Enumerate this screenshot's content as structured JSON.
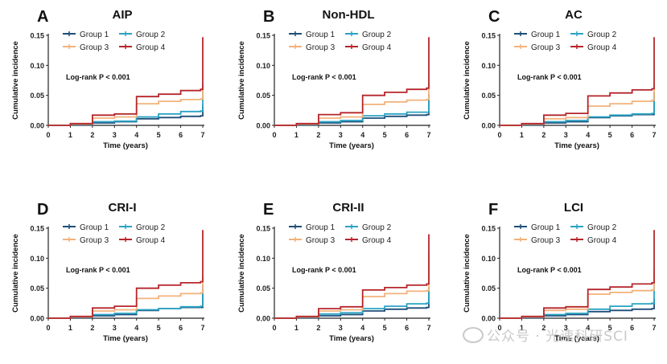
{
  "watermark": {
    "text": "公众号 · 光速科研SCI",
    "icon": "wechat-icon"
  },
  "chart_data": [
    {
      "type": "line",
      "step": true,
      "panel_letter": "A",
      "title": "AIP",
      "xlabel": "Time (years)",
      "ylabel": "Cumulative incidence",
      "xlim": [
        0,
        7
      ],
      "ylim": [
        0,
        0.15
      ],
      "xticks": [
        "0",
        "1",
        "2",
        "3",
        "4",
        "5",
        "6",
        "7"
      ],
      "yticks": [
        "0.00",
        "0.05",
        "0.10",
        "0.15"
      ],
      "annotation": "Log-rank P < 0.001",
      "legend": [
        "Group 1",
        "Group 2",
        "Group 3",
        "Group 4"
      ],
      "series": [
        {
          "name": "Group 1",
          "color": "#1f4e79",
          "x": [
            0,
            1,
            2,
            3,
            4,
            5,
            6,
            6.9,
            7
          ],
          "y": [
            0,
            0.001,
            0.004,
            0.006,
            0.011,
            0.013,
            0.015,
            0.016,
            0.033
          ]
        },
        {
          "name": "Group 2",
          "color": "#2aa3c4",
          "x": [
            0,
            1,
            2,
            3,
            4,
            5,
            6,
            6.9,
            7
          ],
          "y": [
            0,
            0.002,
            0.006,
            0.007,
            0.014,
            0.019,
            0.023,
            0.024,
            0.068
          ]
        },
        {
          "name": "Group 3",
          "color": "#f2b27b",
          "x": [
            0,
            1,
            2,
            3,
            4,
            5,
            6,
            6.9,
            7
          ],
          "y": [
            0,
            0.002,
            0.012,
            0.014,
            0.036,
            0.04,
            0.043,
            0.044,
            0.062
          ]
        },
        {
          "name": "Group 4",
          "color": "#b5262b",
          "x": [
            0,
            1,
            2,
            3,
            4,
            5,
            6,
            6.9,
            7
          ],
          "y": [
            0,
            0.003,
            0.017,
            0.019,
            0.048,
            0.052,
            0.058,
            0.06,
            0.147
          ]
        }
      ]
    },
    {
      "type": "line",
      "step": true,
      "panel_letter": "B",
      "title": "Non-HDL",
      "xlabel": "Time (years)",
      "ylabel": "Cumulative incidence",
      "xlim": [
        0,
        7
      ],
      "ylim": [
        0,
        0.15
      ],
      "xticks": [
        "0",
        "1",
        "2",
        "3",
        "4",
        "5",
        "6",
        "7"
      ],
      "yticks": [
        "0.00",
        "0.05",
        "0.10",
        "0.15"
      ],
      "annotation": "Log-rank P < 0.001",
      "legend": [
        "Group 1",
        "Group 2",
        "Group 3",
        "Group 4"
      ],
      "series": [
        {
          "name": "Group 1",
          "color": "#1f4e79",
          "x": [
            0,
            1,
            2,
            3,
            4,
            5,
            6,
            6.9,
            7
          ],
          "y": [
            0,
            0.001,
            0.004,
            0.006,
            0.012,
            0.015,
            0.017,
            0.018,
            0.052
          ]
        },
        {
          "name": "Group 2",
          "color": "#2aa3c4",
          "x": [
            0,
            1,
            2,
            3,
            4,
            5,
            6,
            6.9,
            7
          ],
          "y": [
            0,
            0.002,
            0.006,
            0.008,
            0.016,
            0.019,
            0.022,
            0.022,
            0.05
          ]
        },
        {
          "name": "Group 3",
          "color": "#f2b27b",
          "x": [
            0,
            1,
            2,
            3,
            4,
            5,
            6,
            6.9,
            7
          ],
          "y": [
            0,
            0.002,
            0.012,
            0.014,
            0.035,
            0.039,
            0.042,
            0.043,
            0.07
          ]
        },
        {
          "name": "Group 4",
          "color": "#b5262b",
          "x": [
            0,
            1,
            2,
            3,
            4,
            5,
            6,
            6.9,
            7
          ],
          "y": [
            0,
            0.003,
            0.018,
            0.021,
            0.05,
            0.055,
            0.06,
            0.062,
            0.147
          ]
        }
      ]
    },
    {
      "type": "line",
      "step": true,
      "panel_letter": "C",
      "title": "AC",
      "xlabel": "Time (years)",
      "ylabel": "Cumulative incidence",
      "xlim": [
        0,
        7
      ],
      "ylim": [
        0,
        0.15
      ],
      "xticks": [
        "0",
        "1",
        "2",
        "3",
        "4",
        "5",
        "6",
        "7"
      ],
      "yticks": [
        "0.00",
        "0.05",
        "0.10",
        "0.15"
      ],
      "annotation": "Log-rank P < 0.001",
      "legend": [
        "Group 1",
        "Group 2",
        "Group 3",
        "Group 4"
      ],
      "series": [
        {
          "name": "Group 1",
          "color": "#1f4e79",
          "x": [
            0,
            1,
            2,
            3,
            4,
            5,
            6,
            6.9,
            7
          ],
          "y": [
            0,
            0.001,
            0.004,
            0.006,
            0.013,
            0.016,
            0.018,
            0.018,
            0.055
          ]
        },
        {
          "name": "Group 2",
          "color": "#2aa3c4",
          "x": [
            0,
            1,
            2,
            3,
            4,
            5,
            6,
            6.9,
            7
          ],
          "y": [
            0,
            0.002,
            0.006,
            0.008,
            0.014,
            0.017,
            0.019,
            0.02,
            0.048
          ]
        },
        {
          "name": "Group 3",
          "color": "#f2b27b",
          "x": [
            0,
            1,
            2,
            3,
            4,
            5,
            6,
            6.9,
            7
          ],
          "y": [
            0,
            0.002,
            0.011,
            0.013,
            0.032,
            0.036,
            0.04,
            0.042,
            0.07
          ]
        },
        {
          "name": "Group 4",
          "color": "#b5262b",
          "x": [
            0,
            1,
            2,
            3,
            4,
            5,
            6,
            6.9,
            7
          ],
          "y": [
            0,
            0.003,
            0.017,
            0.02,
            0.049,
            0.054,
            0.059,
            0.061,
            0.147
          ]
        }
      ]
    },
    {
      "type": "line",
      "step": true,
      "panel_letter": "D",
      "title": "CRI-I",
      "xlabel": "Time (years)",
      "ylabel": "Cumulative incidence",
      "xlim": [
        0,
        7
      ],
      "ylim": [
        0,
        0.15
      ],
      "xticks": [
        "0",
        "1",
        "2",
        "3",
        "4",
        "5",
        "6",
        "7"
      ],
      "yticks": [
        "0.00",
        "0.05",
        "0.10",
        "0.15"
      ],
      "annotation": "Log-rank P < 0.001",
      "legend": [
        "Group 1",
        "Group 2",
        "Group 3",
        "Group 4"
      ],
      "series": [
        {
          "name": "Group 1",
          "color": "#1f4e79",
          "x": [
            0,
            1,
            2,
            3,
            4,
            5,
            6,
            6.9,
            7
          ],
          "y": [
            0,
            0.001,
            0.004,
            0.006,
            0.013,
            0.016,
            0.018,
            0.018,
            0.055
          ]
        },
        {
          "name": "Group 2",
          "color": "#2aa3c4",
          "x": [
            0,
            1,
            2,
            3,
            4,
            5,
            6,
            6.9,
            7
          ],
          "y": [
            0,
            0.002,
            0.006,
            0.008,
            0.014,
            0.016,
            0.019,
            0.02,
            0.048
          ]
        },
        {
          "name": "Group 3",
          "color": "#f2b27b",
          "x": [
            0,
            1,
            2,
            3,
            4,
            5,
            6,
            6.9,
            7
          ],
          "y": [
            0,
            0.002,
            0.012,
            0.014,
            0.033,
            0.037,
            0.041,
            0.042,
            0.07
          ]
        },
        {
          "name": "Group 4",
          "color": "#b5262b",
          "x": [
            0,
            1,
            2,
            3,
            4,
            5,
            6,
            6.9,
            7
          ],
          "y": [
            0,
            0.003,
            0.017,
            0.02,
            0.05,
            0.055,
            0.059,
            0.061,
            0.147
          ]
        }
      ]
    },
    {
      "type": "line",
      "step": true,
      "panel_letter": "E",
      "title": "CRI-II",
      "xlabel": "Time (years)",
      "ylabel": "Cumulative incidence",
      "xlim": [
        0,
        7
      ],
      "ylim": [
        0,
        0.15
      ],
      "xticks": [
        "0",
        "1",
        "2",
        "3",
        "4",
        "5",
        "6",
        "7"
      ],
      "yticks": [
        "0.00",
        "0.05",
        "0.10",
        "0.15"
      ],
      "annotation": "Log-rank P < 0.001",
      "legend": [
        "Group 1",
        "Group 2",
        "Group 3",
        "Group 4"
      ],
      "series": [
        {
          "name": "Group 1",
          "color": "#1f4e79",
          "x": [
            0,
            1,
            2,
            3,
            4,
            5,
            6,
            6.9,
            7
          ],
          "y": [
            0,
            0.001,
            0.004,
            0.006,
            0.012,
            0.015,
            0.017,
            0.018,
            0.052
          ]
        },
        {
          "name": "Group 2",
          "color": "#2aa3c4",
          "x": [
            0,
            1,
            2,
            3,
            4,
            5,
            6,
            6.9,
            7
          ],
          "y": [
            0,
            0.002,
            0.007,
            0.009,
            0.016,
            0.02,
            0.024,
            0.025,
            0.05
          ]
        },
        {
          "name": "Group 3",
          "color": "#f2b27b",
          "x": [
            0,
            1,
            2,
            3,
            4,
            5,
            6,
            6.9,
            7
          ],
          "y": [
            0,
            0.002,
            0.012,
            0.014,
            0.036,
            0.041,
            0.045,
            0.046,
            0.11
          ]
        },
        {
          "name": "Group 4",
          "color": "#b5262b",
          "x": [
            0,
            1,
            2,
            3,
            4,
            5,
            6,
            6.9,
            7
          ],
          "y": [
            0,
            0.003,
            0.016,
            0.019,
            0.047,
            0.051,
            0.055,
            0.057,
            0.14
          ]
        }
      ]
    },
    {
      "type": "line",
      "step": true,
      "panel_letter": "F",
      "title": "LCI",
      "xlabel": "Time (years)",
      "ylabel": "Cumulative incidence",
      "xlim": [
        0,
        7
      ],
      "ylim": [
        0,
        0.15
      ],
      "xticks": [
        "0",
        "1",
        "2",
        "3",
        "4",
        "5",
        "6",
        "7"
      ],
      "yticks": [
        "0.00",
        "0.05",
        "0.10",
        "0.15"
      ],
      "annotation": "Log-rank P < 0.001",
      "legend": [
        "Group 1",
        "Group 2",
        "Group 3",
        "Group 4"
      ],
      "series": [
        {
          "name": "Group 1",
          "color": "#1f4e79",
          "x": [
            0,
            1,
            2,
            3,
            4,
            5,
            6,
            6.9,
            7
          ],
          "y": [
            0,
            0.001,
            0.004,
            0.006,
            0.011,
            0.013,
            0.015,
            0.016,
            0.033
          ]
        },
        {
          "name": "Group 2",
          "color": "#2aa3c4",
          "x": [
            0,
            1,
            2,
            3,
            4,
            5,
            6,
            6.9,
            7
          ],
          "y": [
            0,
            0.002,
            0.006,
            0.008,
            0.015,
            0.02,
            0.024,
            0.025,
            0.065
          ]
        },
        {
          "name": "Group 3",
          "color": "#f2b27b",
          "x": [
            0,
            1,
            2,
            3,
            4,
            5,
            6,
            6.9,
            7
          ],
          "y": [
            0,
            0.002,
            0.013,
            0.015,
            0.04,
            0.043,
            0.046,
            0.047,
            0.08
          ]
        },
        {
          "name": "Group 4",
          "color": "#b5262b",
          "x": [
            0,
            1,
            2,
            3,
            4,
            5,
            6,
            6.9,
            7
          ],
          "y": [
            0,
            0.003,
            0.017,
            0.019,
            0.048,
            0.052,
            0.057,
            0.059,
            0.147
          ]
        }
      ]
    }
  ]
}
